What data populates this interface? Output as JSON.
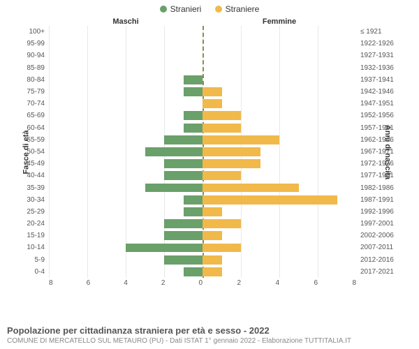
{
  "legend": {
    "male": {
      "label": "Stranieri",
      "color": "#6aa06a"
    },
    "female": {
      "label": "Straniere",
      "color": "#f0b94a"
    }
  },
  "headers": {
    "male": "Maschi",
    "female": "Femmine",
    "left_axis": "Fasce di età",
    "right_axis": "Anni di nascita"
  },
  "chart": {
    "type": "population-pyramid",
    "x_max": 8,
    "x_ticks_left": [
      "8",
      "6",
      "4",
      "2",
      "0"
    ],
    "x_ticks_right": [
      "0",
      "2",
      "4",
      "6",
      "8"
    ],
    "bar_color_male": "#6aa06a",
    "bar_color_female": "#f0b94a",
    "grid_color": "#e8e8e8",
    "center_line_color": "#8a8a55",
    "background_color": "#ffffff",
    "rows": [
      {
        "age": "100+",
        "birth": "≤ 1921",
        "male": 0,
        "female": 0
      },
      {
        "age": "95-99",
        "birth": "1922-1926",
        "male": 0,
        "female": 0
      },
      {
        "age": "90-94",
        "birth": "1927-1931",
        "male": 0,
        "female": 0
      },
      {
        "age": "85-89",
        "birth": "1932-1936",
        "male": 0,
        "female": 0
      },
      {
        "age": "80-84",
        "birth": "1937-1941",
        "male": 1,
        "female": 0
      },
      {
        "age": "75-79",
        "birth": "1942-1946",
        "male": 1,
        "female": 1
      },
      {
        "age": "70-74",
        "birth": "1947-1951",
        "male": 0,
        "female": 1
      },
      {
        "age": "65-69",
        "birth": "1952-1956",
        "male": 1,
        "female": 2
      },
      {
        "age": "60-64",
        "birth": "1957-1961",
        "male": 1,
        "female": 2
      },
      {
        "age": "55-59",
        "birth": "1962-1966",
        "male": 2,
        "female": 4
      },
      {
        "age": "50-54",
        "birth": "1967-1971",
        "male": 3,
        "female": 3
      },
      {
        "age": "45-49",
        "birth": "1972-1976",
        "male": 2,
        "female": 3
      },
      {
        "age": "40-44",
        "birth": "1977-1981",
        "male": 2,
        "female": 2
      },
      {
        "age": "35-39",
        "birth": "1982-1986",
        "male": 3,
        "female": 5
      },
      {
        "age": "30-34",
        "birth": "1987-1991",
        "male": 1,
        "female": 7
      },
      {
        "age": "25-29",
        "birth": "1992-1996",
        "male": 1,
        "female": 1
      },
      {
        "age": "20-24",
        "birth": "1997-2001",
        "male": 2,
        "female": 2
      },
      {
        "age": "15-19",
        "birth": "2002-2006",
        "male": 2,
        "female": 1
      },
      {
        "age": "10-14",
        "birth": "2007-2011",
        "male": 4,
        "female": 2
      },
      {
        "age": "5-9",
        "birth": "2012-2016",
        "male": 2,
        "female": 1
      },
      {
        "age": "0-4",
        "birth": "2017-2021",
        "male": 1,
        "female": 1
      }
    ]
  },
  "footer": {
    "title": "Popolazione per cittadinanza straniera per età e sesso - 2022",
    "subtitle": "COMUNE DI MERCATELLO SUL METAURO (PU) - Dati ISTAT 1° gennaio 2022 - Elaborazione TUTTITALIA.IT"
  }
}
